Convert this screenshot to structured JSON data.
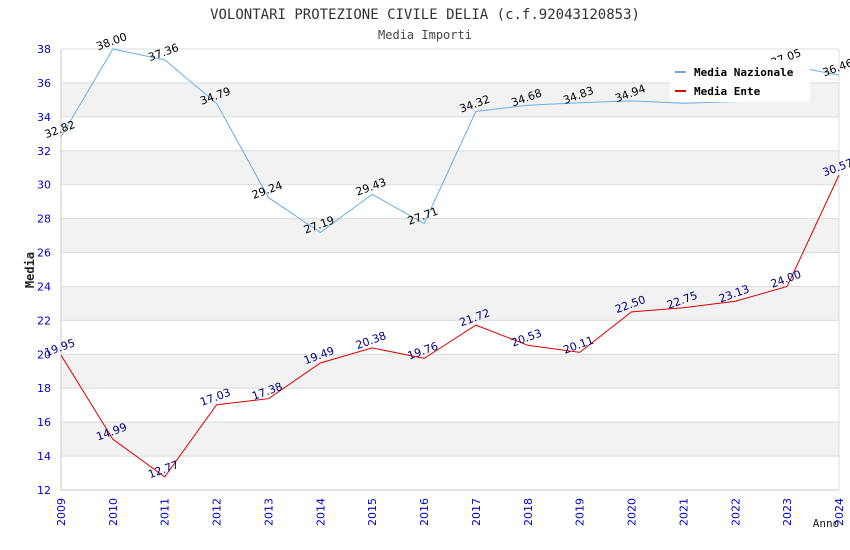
{
  "chart_data": {
    "type": "line",
    "title": "VOLONTARI PROTEZIONE CIVILE DELIA (c.f.92043120853)",
    "subtitle": "Media Importi",
    "xlabel": "Anno",
    "ylabel": "Media",
    "ylim": [
      12,
      38
    ],
    "y_ticks": [
      "12",
      "14",
      "16",
      "18",
      "20",
      "22",
      "24",
      "26",
      "28",
      "30",
      "32",
      "34",
      "36",
      "38"
    ],
    "categories": [
      "2009",
      "2010",
      "2011",
      "2012",
      "2013",
      "2014",
      "2015",
      "2016",
      "2017",
      "2018",
      "2019",
      "2020",
      "2021",
      "2022",
      "2023",
      "2024"
    ],
    "legend_position": "top-right",
    "series": [
      {
        "name": "Media Nazionale",
        "color": "#6aaee8",
        "label_color": "#000000",
        "values": [
          32.82,
          38.0,
          37.36,
          34.79,
          29.24,
          27.19,
          29.43,
          27.71,
          34.32,
          34.68,
          34.83,
          34.94,
          34.8,
          34.9,
          37.05,
          36.46
        ],
        "labels": [
          "32.82",
          "38.00",
          "37.36",
          "34.79",
          "29.24",
          "27.19",
          "29.43",
          "27.71",
          "34.32",
          "34.68",
          "34.83",
          "34.94",
          "",
          "",
          "37.05",
          "36.46"
        ]
      },
      {
        "name": "Media Ente",
        "color": "#e00000",
        "label_color": "#00007a",
        "values": [
          19.95,
          14.99,
          12.77,
          17.03,
          17.38,
          19.49,
          20.38,
          19.76,
          21.72,
          20.53,
          20.11,
          22.5,
          22.75,
          23.13,
          24.0,
          30.57
        ],
        "labels": [
          "19.95",
          "14.99",
          "12.77",
          "17.03",
          "17.38",
          "19.49",
          "20.38",
          "19.76",
          "21.72",
          "20.53",
          "20.11",
          "22.50",
          "22.75",
          "23.13",
          "24.00",
          "30.57"
        ]
      }
    ],
    "colors": {
      "tick_label": "#0000cc",
      "band": "#f2f2f2",
      "grid": "#dcdcdc",
      "axis": "#c8c8c8",
      "text": "#333333"
    }
  }
}
